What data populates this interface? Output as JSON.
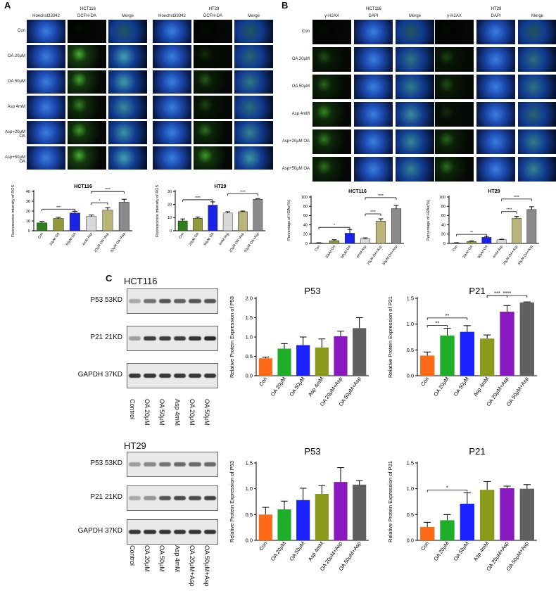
{
  "panelA": {
    "letter": "A",
    "groups": [
      {
        "title": "HCT116",
        "columns": [
          "Hoechst33342",
          "DCFH-DA",
          "Merge"
        ]
      },
      {
        "title": "HT29",
        "columns": [
          "Hoechst33342",
          "DCFH-DA",
          "Merge"
        ]
      }
    ],
    "rows": [
      "Con",
      "OA 20μM",
      "OA 50μM",
      "Asp 4mM",
      "Asp+20μM OA",
      "Asp+50μM OA"
    ]
  },
  "panelB": {
    "letter": "B",
    "groups": [
      {
        "title": "HCT116",
        "columns": [
          "γ-H2AX",
          "DAPI",
          "Merge"
        ]
      },
      {
        "title": "HT29",
        "columns": [
          "γ-H2AX",
          "DAPI",
          "Merge"
        ]
      }
    ],
    "rows": [
      "Con",
      "OA 20μM",
      "OA 50μM",
      "Asp 4mM",
      "Asp+20μM OA",
      "Asp+50μM OA"
    ]
  },
  "panelC": {
    "letter": "C",
    "blots": [
      {
        "cell": "HCT116",
        "bands": [
          "P53 53KD",
          "P21 21KD",
          "GAPDH 37KD"
        ],
        "lanes": [
          "Control",
          "OA 20μM",
          "OA 50μM",
          "Asp 4mM",
          "OA 20μM",
          "OA 50μM"
        ]
      },
      {
        "cell": "HT29",
        "bands": [
          "P53 53KD",
          "P21 21KD",
          "GAPDH 37KD"
        ],
        "lanes": [
          "Control",
          "OA 20μM",
          "OA 50μM",
          "Asp 4mM",
          "OA 20μM+Asp",
          "OA 50μM+Asp"
        ]
      }
    ]
  },
  "colors": {
    "ros": [
      "#2e7d1e",
      "#8f9a3c",
      "#1a22e6",
      "#d8d8d8",
      "#b9b47a",
      "#8a8a8a"
    ],
    "h2ax": [
      "#2e7d1e",
      "#8f9a3c",
      "#1a22e6",
      "#d8d8d8",
      "#b9b47a",
      "#8a8a8a"
    ],
    "wb": [
      "#ff6a16",
      "#1fae2a",
      "#1a22ff",
      "#8a9a1a",
      "#8a1ac0",
      "#606060"
    ]
  },
  "chart_data": [
    {
      "id": "ros-hct116",
      "type": "bar",
      "title": "HCT116",
      "ylabel": "Fluorescence intensity of ROS",
      "categories": [
        "Con",
        "20μM OA",
        "50μM OA",
        "4mM Asp",
        "20μM OA+Asp",
        "50μM OA+Asp"
      ],
      "values": [
        8,
        12.5,
        18,
        14.5,
        21,
        29
      ],
      "errors": [
        1.5,
        1.2,
        1.8,
        1.5,
        2.5,
        3
      ],
      "ylim": [
        0,
        40
      ],
      "yticks": [
        "0",
        "10",
        "20",
        "30",
        "40"
      ],
      "sig": [
        {
          "a": 0,
          "b": 2,
          "label": "***"
        },
        {
          "a": 3,
          "b": 4,
          "label": "*"
        },
        {
          "a": 3,
          "b": 5,
          "label": "****"
        }
      ]
    },
    {
      "id": "ros-ht29",
      "type": "bar",
      "title": "HT29",
      "ylabel": "Fluorescence intensity of ROS",
      "categories": [
        "Con",
        "20μM OA",
        "50μM OA",
        "4mM Asp",
        "20μM OA+Asp",
        "50μM OA+Asp"
      ],
      "values": [
        7.5,
        9.5,
        19.5,
        13.5,
        14.5,
        24
      ],
      "errors": [
        1.5,
        1,
        2.5,
        1,
        0.5,
        0.5
      ],
      "ylim": [
        0,
        30
      ],
      "yticks": [
        "0",
        "10",
        "20",
        "30"
      ],
      "sig": [
        {
          "a": 0,
          "b": 2,
          "label": "****"
        },
        {
          "a": 3,
          "b": 5,
          "label": "****"
        }
      ]
    },
    {
      "id": "h2ax-hct116",
      "type": "bar",
      "title": "HCT116",
      "ylabel": "Percentage of H2Ax(%)",
      "categories": [
        "Con",
        "20μM OA",
        "50μM OA",
        "4mM Asp",
        "20μM OA+Asp",
        "50μM OA+Asp"
      ],
      "values": [
        1,
        6,
        22,
        10,
        48,
        75
      ],
      "errors": [
        0.5,
        2,
        8,
        2,
        5,
        7
      ],
      "ylim": [
        0,
        100
      ],
      "yticks": [
        "0",
        "20",
        "40",
        "60",
        "80",
        "100"
      ],
      "sig": [
        {
          "a": 0,
          "b": 2,
          "label": "*"
        },
        {
          "a": 3,
          "b": 4,
          "label": "****"
        },
        {
          "a": 3,
          "b": 5,
          "label": "****"
        }
      ]
    },
    {
      "id": "h2ax-ht29",
      "type": "bar",
      "title": "HT29",
      "ylabel": "Percentage of H2Ax(%)",
      "categories": [
        "Con",
        "20μM OA",
        "50μM OA",
        "4mM Asp",
        "20μM OA+Asp",
        "50μM OA+Asp"
      ],
      "values": [
        1,
        4,
        13,
        8,
        54,
        73
      ],
      "errors": [
        0.5,
        1.5,
        2,
        1,
        4,
        6
      ],
      "ylim": [
        0,
        100
      ],
      "yticks": [
        "0",
        "20",
        "40",
        "60",
        "80",
        "100"
      ],
      "sig": [
        {
          "a": 0,
          "b": 2,
          "label": "**"
        },
        {
          "a": 3,
          "b": 4,
          "label": "****"
        },
        {
          "a": 3,
          "b": 5,
          "label": "****"
        }
      ]
    },
    {
      "id": "wb-hct116-p53",
      "type": "bar",
      "title": "P53",
      "ylabel": "Relative Protein Expression of P53",
      "categories": [
        "Con",
        "OA 20μM",
        "OA 50μM",
        "Asp 4mM",
        "OA 20μM+Asp",
        "OA 50μM+Asp"
      ],
      "values": [
        0.45,
        0.7,
        0.79,
        0.73,
        1.02,
        1.23
      ],
      "errors": [
        0.03,
        0.13,
        0.21,
        0.22,
        0.13,
        0.27
      ],
      "ylim": [
        0,
        2.0
      ],
      "yticks": [
        "0.0",
        "0.5",
        "1.0",
        "1.5",
        "2.0"
      ],
      "sig": []
    },
    {
      "id": "wb-hct116-p21",
      "type": "bar",
      "title": "P21",
      "ylabel": "Relative Protein Expression of P21",
      "categories": [
        "Con",
        "OA 20μM",
        "OA 50μM",
        "Asp 4mM",
        "OA 20μM+Asp",
        "OA 50μM+Asp"
      ],
      "values": [
        0.39,
        0.78,
        0.85,
        0.72,
        1.24,
        1.42
      ],
      "errors": [
        0.07,
        0.14,
        0.12,
        0.07,
        0.12,
        0.01
      ],
      "ylim": [
        0,
        1.5
      ],
      "yticks": [
        "0.0",
        "0.5",
        "1.0",
        "1.5"
      ],
      "sig": [
        {
          "a": 0,
          "b": 1,
          "label": "**"
        },
        {
          "a": 0,
          "b": 2,
          "label": "**"
        },
        {
          "a": 3,
          "b": 4,
          "label": "***"
        },
        {
          "a": 3,
          "b": 5,
          "label": "****"
        }
      ]
    },
    {
      "id": "wb-ht29-p53",
      "type": "bar",
      "title": "P53",
      "ylabel": "Relative Protein Expression of P53",
      "categories": [
        "Con",
        "OA 20μM",
        "OA 50μM",
        "Asp 4mM",
        "OA 20μM+Asp",
        "OA 50μM+Asp"
      ],
      "values": [
        0.5,
        0.6,
        0.78,
        0.9,
        1.13,
        1.08
      ],
      "errors": [
        0.14,
        0.16,
        0.23,
        0.16,
        0.28,
        0.08
      ],
      "ylim": [
        0,
        1.5
      ],
      "yticks": [
        "0.0",
        "0.5",
        "1.0",
        "1.5"
      ],
      "sig": []
    },
    {
      "id": "wb-ht29-p21",
      "type": "bar",
      "title": "P21",
      "ylabel": "Relative Protein Expression of P21",
      "categories": [
        "Con",
        "OA 20μM",
        "OA 50μM",
        "Asp 4mM",
        "OA 20μM+Asp",
        "OA 50μM+Asp"
      ],
      "values": [
        0.26,
        0.39,
        0.71,
        0.98,
        1.01,
        1.0
      ],
      "errors": [
        0.09,
        0.11,
        0.21,
        0.16,
        0.04,
        0.08
      ],
      "ylim": [
        0,
        1.5
      ],
      "yticks": [
        "0.0",
        "0.5",
        "1.0",
        "1.5"
      ],
      "sig": [
        {
          "a": 0,
          "b": 2,
          "label": "*"
        }
      ]
    }
  ]
}
